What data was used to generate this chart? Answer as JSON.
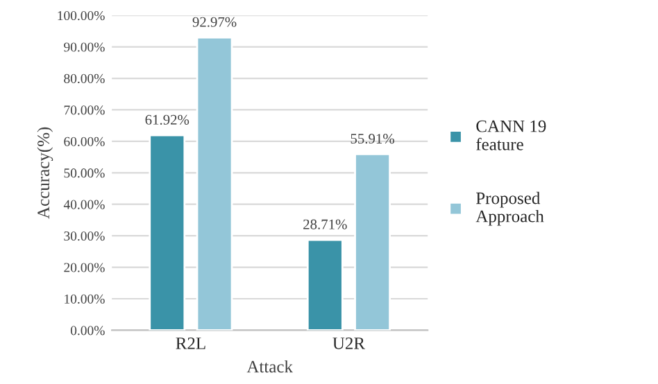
{
  "chart_data": {
    "type": "bar",
    "xlabel": "Attack",
    "ylabel": "Accuracy(%)",
    "categories": [
      "R2L",
      "U2R"
    ],
    "series": [
      {
        "name": "CANN 19 feature",
        "color": "#3a93a8",
        "values": [
          61.92,
          28.71
        ],
        "value_labels": [
          "61.92%",
          "28.71%"
        ]
      },
      {
        "name": "Proposed Approach",
        "color": "#93c6d8",
        "values": [
          92.97,
          55.91
        ],
        "value_labels": [
          "92.97%",
          "55.91%"
        ]
      }
    ],
    "ylim": [
      0,
      100
    ],
    "yticks": [
      {
        "value": 0,
        "label": "0.00%"
      },
      {
        "value": 10,
        "label": "10.00%"
      },
      {
        "value": 20,
        "label": "20.00%"
      },
      {
        "value": 30,
        "label": "30.00%"
      },
      {
        "value": 40,
        "label": "40.00%"
      },
      {
        "value": 50,
        "label": "50.00%"
      },
      {
        "value": 60,
        "label": "60.00%"
      },
      {
        "value": 70,
        "label": "70.00%"
      },
      {
        "value": 80,
        "label": "80.00%"
      },
      {
        "value": 90,
        "label": "90.00%"
      },
      {
        "value": 100,
        "label": "100.00%"
      }
    ],
    "grid": "y",
    "legend": "right"
  }
}
